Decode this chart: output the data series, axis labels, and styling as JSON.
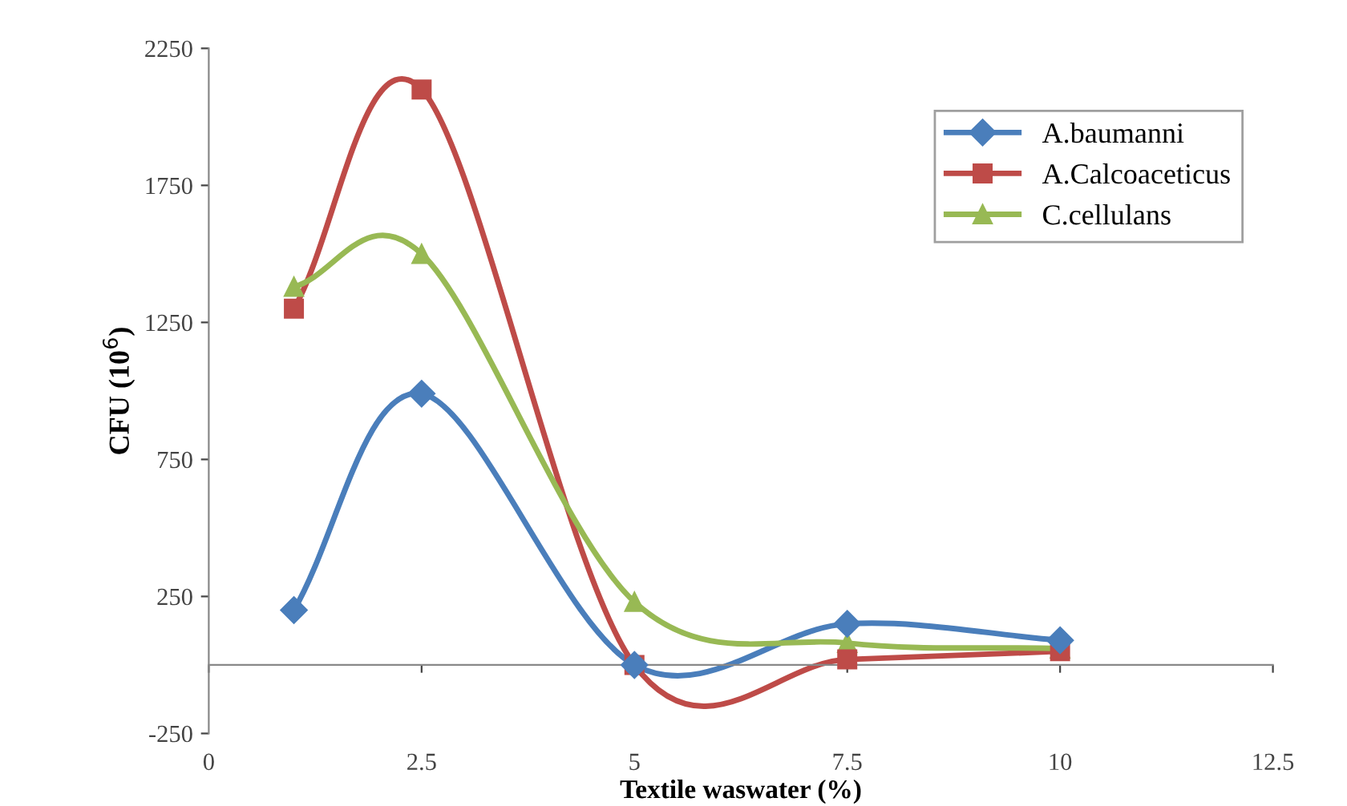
{
  "chart_data": {
    "type": "line",
    "xlabel": "Textile waswater (%)",
    "ylabel": "CFU (10$^{6}$)",
    "x": [
      1,
      2.5,
      5,
      7.5,
      10
    ],
    "series": [
      {
        "name": "A.baumanni",
        "color": "#4a7ebb",
        "marker": "diamond",
        "values": [
          200,
          990,
          0,
          150,
          90
        ]
      },
      {
        "name": "A.Calcoaceticus",
        "color": "#be4b48",
        "marker": "square",
        "values": [
          1300,
          2100,
          0,
          20,
          50
        ]
      },
      {
        "name": "C.cellulans",
        "color": "#98b954",
        "marker": "triangle",
        "values": [
          1380,
          1500,
          230,
          80,
          60
        ]
      }
    ],
    "xlim": [
      0,
      12.5
    ],
    "xticks": [
      0,
      2.5,
      5,
      7.5,
      10,
      12.5
    ],
    "ylim": [
      -250,
      2250
    ],
    "yticks": [
      -250,
      250,
      750,
      1250,
      1750,
      2250
    ],
    "grid": false,
    "legend": "top right"
  }
}
